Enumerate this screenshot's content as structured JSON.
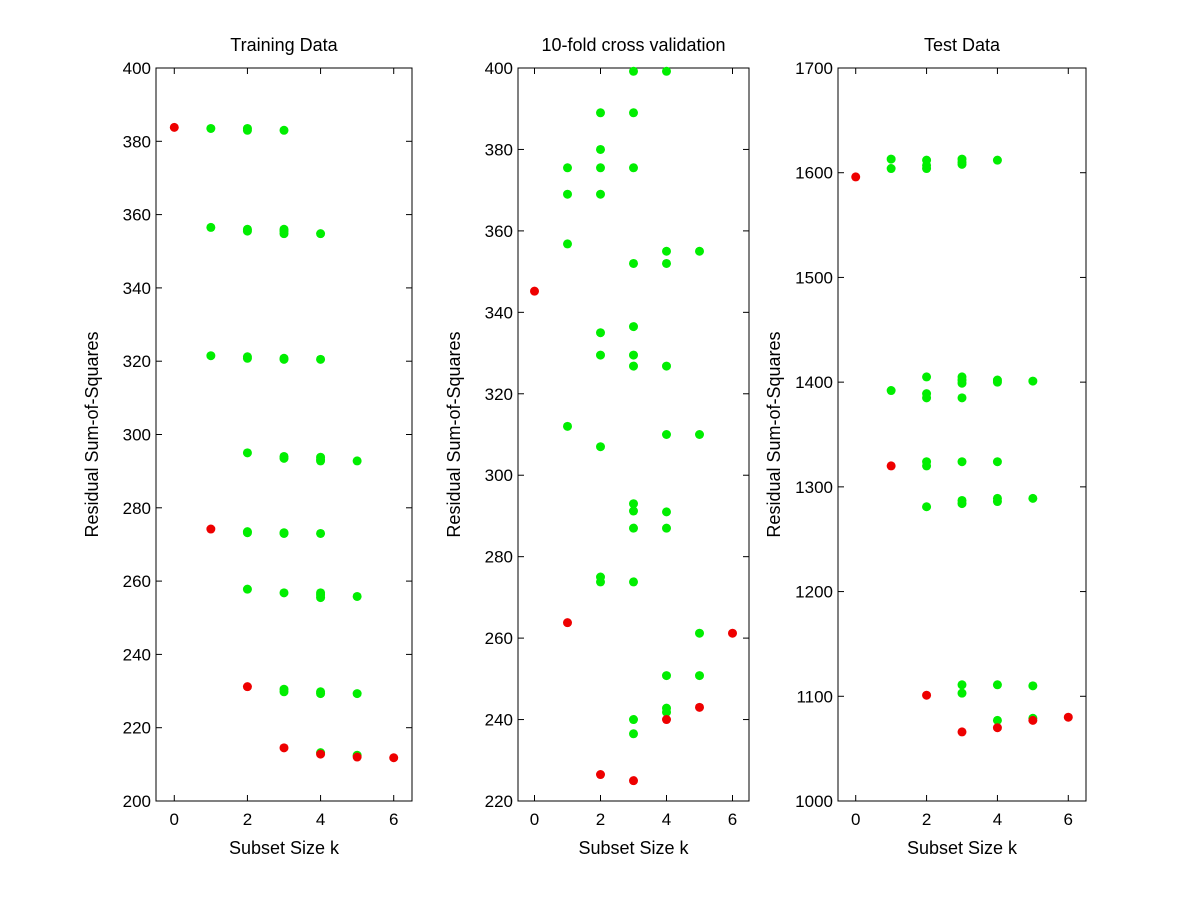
{
  "chart_data": [
    {
      "type": "scatter",
      "title": "Training Data",
      "xlabel": "Subset Size k",
      "ylabel": "Residual Sum-of-Squares",
      "xlim": [
        -0.5,
        6.5
      ],
      "ylim": [
        200,
        400
      ],
      "xticks": [
        0,
        2,
        4,
        6
      ],
      "yticks": [
        200,
        220,
        240,
        260,
        280,
        300,
        320,
        340,
        360,
        380,
        400
      ],
      "grid": false,
      "colors": {
        "subsets": "#00ee00",
        "best": "#ee0000"
      },
      "series": [
        {
          "points": [
            [
              1,
              383.5
            ],
            [
              2,
              383.5
            ],
            [
              2,
              383
            ],
            [
              3,
              383
            ],
            [
              1,
              356.5
            ],
            [
              2,
              356
            ],
            [
              2,
              355.5
            ],
            [
              3,
              356
            ],
            [
              3,
              355.5
            ],
            [
              3,
              354.8
            ],
            [
              4,
              354.8
            ],
            [
              1,
              321.5
            ],
            [
              2,
              321.2
            ],
            [
              2,
              320.8
            ],
            [
              3,
              320.8
            ],
            [
              3,
              320.5
            ],
            [
              4,
              320.5
            ],
            [
              2,
              295
            ],
            [
              3,
              294
            ],
            [
              3,
              293.5
            ],
            [
              4,
              293.8
            ],
            [
              4,
              293.2
            ],
            [
              4,
              292.8
            ],
            [
              5,
              292.8
            ],
            [
              2,
              273.5
            ],
            [
              2,
              273.2
            ],
            [
              3,
              273.2
            ],
            [
              3,
              273
            ],
            [
              4,
              273
            ],
            [
              2,
              257.8
            ],
            [
              3,
              256.8
            ],
            [
              4,
              256.8
            ],
            [
              4,
              256.2
            ],
            [
              4,
              255.5
            ],
            [
              5,
              255.8
            ],
            [
              3,
              230.5
            ],
            [
              3,
              229.8
            ],
            [
              4,
              229.8
            ],
            [
              4,
              229.3
            ],
            [
              5,
              229.3
            ],
            [
              4,
              213.2
            ],
            [
              5,
              212.5
            ]
          ]
        },
        {
          "points": [
            [
              0,
              383.8
            ],
            [
              1,
              274.2
            ],
            [
              2,
              231.2
            ],
            [
              3,
              214.5
            ],
            [
              4,
              212.8
            ],
            [
              5,
              212
            ],
            [
              6,
              211.8
            ]
          ]
        }
      ]
    },
    {
      "type": "scatter",
      "title": "10-fold cross validation",
      "xlabel": "Subset Size k",
      "ylabel": "Residual Sum-of-Squares",
      "xlim": [
        -0.5,
        6.5
      ],
      "ylim": [
        220,
        400
      ],
      "xticks": [
        0,
        2,
        4,
        6
      ],
      "yticks": [
        220,
        240,
        260,
        280,
        300,
        320,
        340,
        360,
        380,
        400
      ],
      "grid": false,
      "colors": {
        "subsets": "#00ee00",
        "best": "#ee0000"
      },
      "series": [
        {
          "points": [
            [
              1,
              375.5
            ],
            [
              1,
              369
            ],
            [
              1,
              356.8
            ],
            [
              1,
              312
            ],
            [
              2,
              389
            ],
            [
              2,
              380
            ],
            [
              2,
              375.5
            ],
            [
              2,
              369
            ],
            [
              2,
              335
            ],
            [
              2,
              329.5
            ],
            [
              2,
              307
            ],
            [
              2,
              275
            ],
            [
              2,
              273.8
            ],
            [
              3,
              399.2
            ],
            [
              3,
              389
            ],
            [
              3,
              375.5
            ],
            [
              3,
              352
            ],
            [
              3,
              336.5
            ],
            [
              3,
              329.5
            ],
            [
              3,
              326.8
            ],
            [
              3,
              293
            ],
            [
              3,
              291.2
            ],
            [
              3,
              287
            ],
            [
              3,
              273.8
            ],
            [
              3,
              240
            ],
            [
              3,
              236.5
            ],
            [
              4,
              399.2
            ],
            [
              4,
              355
            ],
            [
              4,
              352
            ],
            [
              4,
              326.8
            ],
            [
              4,
              310
            ],
            [
              4,
              291
            ],
            [
              4,
              287
            ],
            [
              4,
              250.8
            ],
            [
              4,
              242.8
            ],
            [
              4,
              241.8
            ],
            [
              5,
              355
            ],
            [
              5,
              310
            ],
            [
              5,
              261.2
            ],
            [
              5,
              250.8
            ]
          ]
        },
        {
          "points": [
            [
              0,
              345.2
            ],
            [
              1,
              263.8
            ],
            [
              2,
              226.5
            ],
            [
              3,
              225
            ],
            [
              4,
              240
            ],
            [
              5,
              243
            ],
            [
              6,
              261.2
            ]
          ]
        }
      ]
    },
    {
      "type": "scatter",
      "title": "Test Data",
      "xlabel": "Subset Size k",
      "ylabel": "Residual Sum-of-Squares",
      "xlim": [
        -0.5,
        6.5
      ],
      "ylim": [
        1000,
        1700
      ],
      "xticks": [
        0,
        2,
        4,
        6
      ],
      "yticks": [
        1000,
        1100,
        1200,
        1300,
        1400,
        1500,
        1600,
        1700
      ],
      "grid": false,
      "colors": {
        "subsets": "#00ee00",
        "best": "#ee0000"
      },
      "series": [
        {
          "points": [
            [
              1,
              1613
            ],
            [
              1,
              1604
            ],
            [
              2,
              1612
            ],
            [
              2,
              1607
            ],
            [
              2,
              1604
            ],
            [
              3,
              1613
            ],
            [
              3,
              1610
            ],
            [
              3,
              1608
            ],
            [
              4,
              1612
            ],
            [
              1,
              1392
            ],
            [
              2,
              1405
            ],
            [
              2,
              1389
            ],
            [
              2,
              1385
            ],
            [
              3,
              1405
            ],
            [
              3,
              1402
            ],
            [
              3,
              1399
            ],
            [
              3,
              1385
            ],
            [
              4,
              1402
            ],
            [
              4,
              1400
            ],
            [
              5,
              1401
            ],
            [
              2,
              1324
            ],
            [
              2,
              1320
            ],
            [
              3,
              1324
            ],
            [
              4,
              1324
            ],
            [
              2,
              1281
            ],
            [
              3,
              1287
            ],
            [
              3,
              1284
            ],
            [
              4,
              1289
            ],
            [
              4,
              1286
            ],
            [
              5,
              1289
            ],
            [
              3,
              1111
            ],
            [
              3,
              1103
            ],
            [
              4,
              1111
            ],
            [
              4,
              1077
            ],
            [
              5,
              1110
            ],
            [
              5,
              1079
            ]
          ]
        },
        {
          "points": [
            [
              0,
              1596
            ],
            [
              1,
              1320
            ],
            [
              2,
              1101
            ],
            [
              3,
              1066
            ],
            [
              4,
              1070
            ],
            [
              5,
              1077
            ],
            [
              6,
              1080
            ]
          ]
        }
      ]
    }
  ]
}
